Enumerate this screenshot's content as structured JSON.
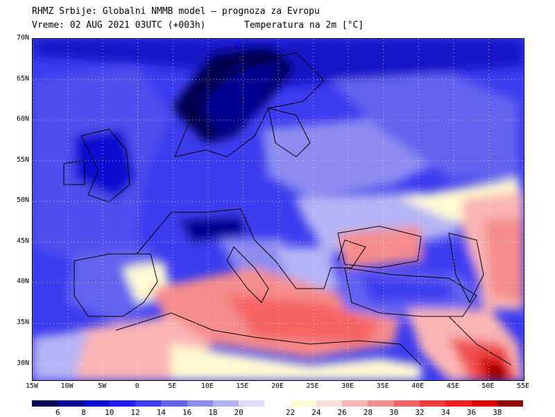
{
  "header": {
    "line1": "RHMZ Srbije: Globalni NMMB model — prognoza za Evropu",
    "line2": "Vreme: 02 AUG 2021 03UTC (+003h)",
    "variable": "Temperatura na 2m [°C]"
  },
  "map": {
    "lon_range": [
      -15,
      55
    ],
    "lat_range": [
      28,
      70
    ],
    "lat_ticks": [
      {
        "value": 70,
        "label": "70N"
      },
      {
        "value": 65,
        "label": "65N"
      },
      {
        "value": 60,
        "label": "60N"
      },
      {
        "value": 55,
        "label": "55N"
      },
      {
        "value": 50,
        "label": "50N"
      },
      {
        "value": 45,
        "label": "45N"
      },
      {
        "value": 40,
        "label": "40N"
      },
      {
        "value": 35,
        "label": "35N"
      },
      {
        "value": 30,
        "label": "30N"
      }
    ],
    "lon_ticks": [
      {
        "value": -15,
        "label": "15W"
      },
      {
        "value": -10,
        "label": "10W"
      },
      {
        "value": -5,
        "label": "5W"
      },
      {
        "value": 0,
        "label": "0"
      },
      {
        "value": 5,
        "label": "5E"
      },
      {
        "value": 10,
        "label": "10E"
      },
      {
        "value": 15,
        "label": "15E"
      },
      {
        "value": 20,
        "label": "20E"
      },
      {
        "value": 25,
        "label": "25E"
      },
      {
        "value": 30,
        "label": "30E"
      },
      {
        "value": 35,
        "label": "35E"
      },
      {
        "value": 40,
        "label": "40E"
      },
      {
        "value": 45,
        "label": "45E"
      },
      {
        "value": 50,
        "label": "50E"
      },
      {
        "value": 55,
        "label": "55E"
      }
    ]
  },
  "colorbar": {
    "colors": [
      "#000050",
      "#050591",
      "#0a0ad2",
      "#1e1ef0",
      "#3c3cf0",
      "#6464f0",
      "#8c8cf0",
      "#b4b4f5",
      "#dcdcfa",
      "#ffffff",
      "#fffad2",
      "#fadcdc",
      "#fab4b4",
      "#f58c8c",
      "#f56464",
      "#f03c3c",
      "#f01e1e",
      "#dc0000",
      "#8c0000"
    ],
    "labels": [
      "6",
      "8",
      "10",
      "12",
      "14",
      "16",
      "18",
      "20",
      "22",
      "24",
      "26",
      "28",
      "30",
      "32",
      "34",
      "36",
      "38"
    ]
  }
}
